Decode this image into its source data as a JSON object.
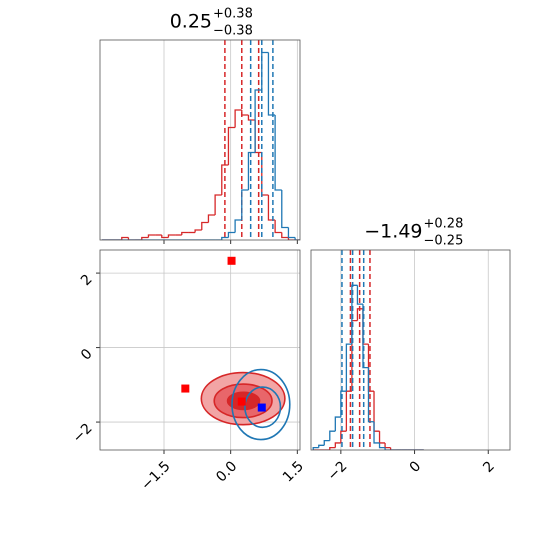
{
  "chart_data": [
    {
      "type": "histogram",
      "title_value": "0.25",
      "title_upper": "+0.38",
      "title_lower": "−0.38",
      "bins": [
        -2.9,
        -2.75,
        -2.6,
        -2.45,
        -2.3,
        -2.15,
        -2.0,
        -1.85,
        -1.7,
        -1.55,
        -1.4,
        -1.25,
        -1.1,
        -0.95,
        -0.8,
        -0.65,
        -0.5,
        -0.35,
        -0.2,
        -0.05,
        0.1,
        0.25,
        0.4,
        0.55,
        0.7,
        0.85,
        1.0,
        1.15,
        1.3,
        1.45,
        1.6
      ],
      "series": [
        {
          "color": "#d62728",
          "values": [
            0,
            0,
            0,
            1,
            0,
            0,
            1,
            2,
            2,
            1,
            2,
            2,
            3,
            3,
            4,
            7,
            10,
            18,
            30,
            45,
            52,
            50,
            48,
            35,
            18,
            8,
            3,
            1,
            0,
            0
          ],
          "quantiles": [
            -0.13,
            0.25,
            0.63
          ]
        },
        {
          "color": "#1f77b4",
          "values": [
            0,
            0,
            0,
            0,
            0,
            0,
            0,
            0,
            0,
            0,
            0,
            0,
            0,
            0,
            0,
            0,
            0,
            0,
            1,
            3,
            8,
            20,
            35,
            60,
            75,
            50,
            20,
            5,
            1,
            0
          ],
          "quantiles": [
            0.45,
            0.7,
            0.95
          ]
        }
      ],
      "xlim": [
        -2.94,
        1.56
      ],
      "xticks": [
        -1.5,
        0,
        1.5
      ],
      "x_tick_labels": false,
      "ylim": [
        0,
        80
      ],
      "grid": "x"
    },
    {
      "type": "contour",
      "series": [
        {
          "color": "#d62728",
          "contours": [
            {
              "cx": 0.28,
              "cy": -1.37,
              "rx": 0.94,
              "ry": 0.7,
              "fill": "#f2a5a5"
            },
            {
              "cx": 0.28,
              "cy": -1.43,
              "rx": 0.65,
              "ry": 0.45,
              "fill": "#e8666a"
            },
            {
              "cx": 0.29,
              "cy": -1.43,
              "rx": 0.36,
              "ry": 0.23,
              "fill": "#d62728"
            }
          ]
        },
        {
          "color": "#1f77b4",
          "contours": [
            {
              "cx": 0.68,
              "cy": -1.53,
              "rx": 0.65,
              "ry": 0.94
            },
            {
              "cx": 0.72,
              "cy": -1.6,
              "rx": 0.4,
              "ry": 0.54
            }
          ]
        }
      ],
      "markers": [
        {
          "color": "#ff0000",
          "x": [
            0.02,
            -1.02,
            0.25
          ],
          "y": [
            2.33,
            -1.1,
            -1.45
          ]
        },
        {
          "color": "#0000ff",
          "x": [
            0.7
          ],
          "y": [
            -1.61
          ]
        }
      ],
      "xlim": [
        -2.94,
        1.56
      ],
      "xticks": [
        {
          "value": -1.5,
          "label": "−1.5"
        },
        {
          "value": 0,
          "label": "0.0"
        },
        1.5
      ],
      "x_tick_labels": true,
      "ylim": [
        -2.75,
        2.62
      ],
      "yticks": [
        {
          "value": -2,
          "label": "−2"
        },
        0,
        2
      ],
      "grid": "both"
    },
    {
      "type": "histogram",
      "title_value": "−1.49",
      "title_upper": "+0.28",
      "title_lower": "−0.25",
      "bins": [
        -2.75,
        -2.6,
        -2.45,
        -2.3,
        -2.15,
        -2.0,
        -1.85,
        -1.7,
        -1.55,
        -1.4,
        -1.25,
        -1.1,
        -0.95,
        -0.8,
        -0.65,
        -0.5,
        -0.35,
        -0.2,
        -0.05,
        0.1,
        0.25
      ],
      "series": [
        {
          "color": "#d62728",
          "values": [
            0,
            0,
            0,
            1,
            3,
            8,
            25,
            55,
            60,
            45,
            25,
            8,
            3,
            1,
            0,
            0,
            0,
            0,
            0,
            0
          ],
          "quantiles": [
            -1.74,
            -1.49,
            -1.21
          ]
        },
        {
          "color": "#1f77b4",
          "values": [
            1,
            2,
            4,
            8,
            14,
            25,
            45,
            70,
            62,
            35,
            12,
            3,
            1,
            0,
            0,
            0,
            0,
            0,
            0,
            0
          ],
          "quantiles": [
            -1.97,
            -1.68,
            -1.38
          ]
        }
      ],
      "xlim": [
        -2.81,
        2.59
      ],
      "xticks": [
        {
          "value": -2,
          "label": "−2"
        },
        0,
        2
      ],
      "x_tick_labels": true,
      "ylim": [
        0,
        85
      ],
      "grid": "x"
    }
  ]
}
